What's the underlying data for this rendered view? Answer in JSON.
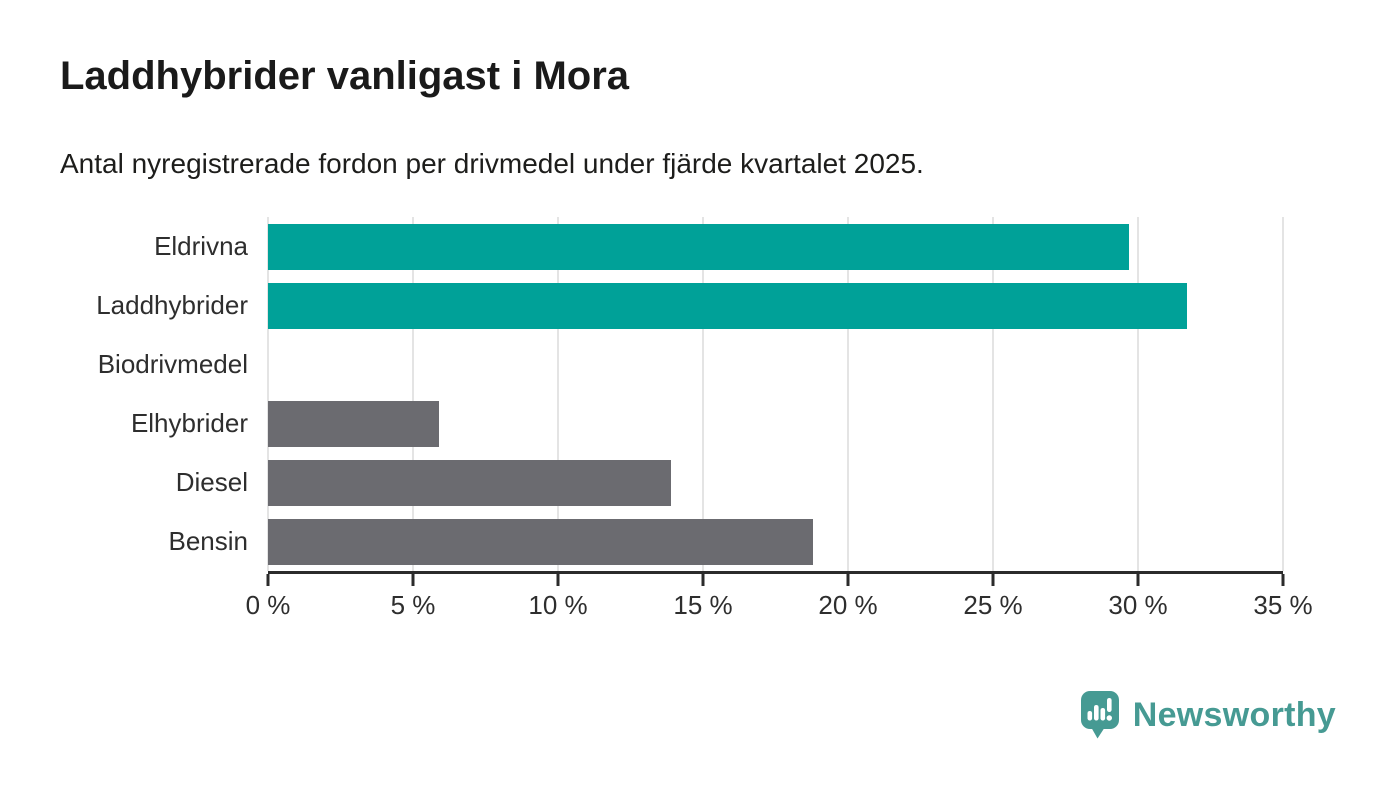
{
  "chart_data": {
    "type": "bar",
    "orientation": "horizontal",
    "title": "Laddhybrider vanligast i Mora",
    "subtitle": "Antal nyregistrerade fordon per drivmedel under fjärde kvartalet 2025.",
    "categories": [
      "Eldrivna",
      "Laddhybrider",
      "Biodrivmedel",
      "Elhybrider",
      "Diesel",
      "Bensin"
    ],
    "values": [
      29.7,
      31.7,
      0,
      5.9,
      13.9,
      18.8
    ],
    "bar_colors": [
      "#00a198",
      "#00a198",
      "#6b6b70",
      "#6b6b70",
      "#6b6b70",
      "#6b6b70"
    ],
    "highlight_color": "#00a198",
    "default_color": "#6b6b70",
    "xlabel": "",
    "ylabel": "",
    "xlim": [
      0,
      35
    ],
    "x_tick_values": [
      0,
      5,
      10,
      15,
      20,
      25,
      30,
      35
    ],
    "x_tick_labels": [
      "0 %",
      "5 %",
      "10 %",
      "15 %",
      "20 %",
      "25 %",
      "30 %",
      "35 %"
    ],
    "grid": true,
    "legend": false
  },
  "branding": {
    "name": "Newsworthy",
    "color": "#469a93",
    "logo_icon": "newsworthy-pin-bar-chart"
  }
}
